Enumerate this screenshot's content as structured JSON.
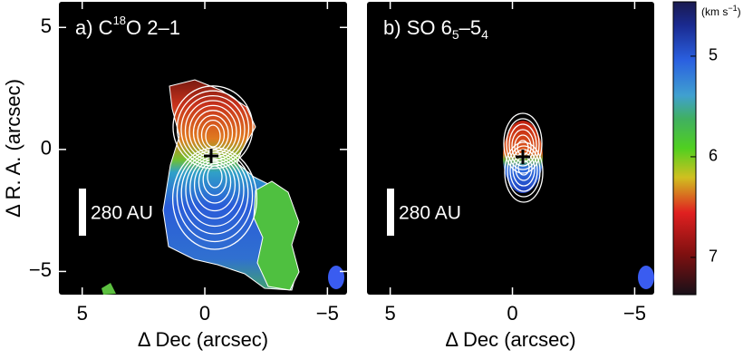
{
  "chart_data": [
    {
      "type": "map",
      "title": [
        "a) C",
        "18",
        "O 2–1"
      ],
      "scale_bar": "280 AU",
      "xlabel": "Δ Dec (arcsec)",
      "ylabel": "Δ R. A. (arcsec)",
      "xlim": [
        5.95,
        -5.8
      ],
      "ylim": [
        -5.95,
        6.05
      ],
      "xticks": [
        5,
        0,
        {
          "value": -5,
          "label": "−5"
        }
      ],
      "yticks": [
        {
          "value": -5,
          "label": "−5"
        },
        0,
        5
      ]
    },
    {
      "type": "map",
      "title": [
        "SO 6",
        "5",
        "–5",
        "4"
      ],
      "title_prefix": "b)",
      "scale_bar": "280 AU",
      "xlabel": "Δ Dec (arcsec)",
      "xlim": [
        5.95,
        -5.8
      ],
      "ylim": [
        -5.95,
        6.05
      ],
      "xticks": [
        5,
        0,
        {
          "value": -5,
          "label": "−5"
        }
      ]
    },
    {
      "type": "colorbar",
      "label": [
        "(km s",
        "−1",
        ")"
      ],
      "ylim": [
        4.46,
        7.37
      ],
      "yticks": [
        5,
        6,
        7
      ]
    }
  ]
}
